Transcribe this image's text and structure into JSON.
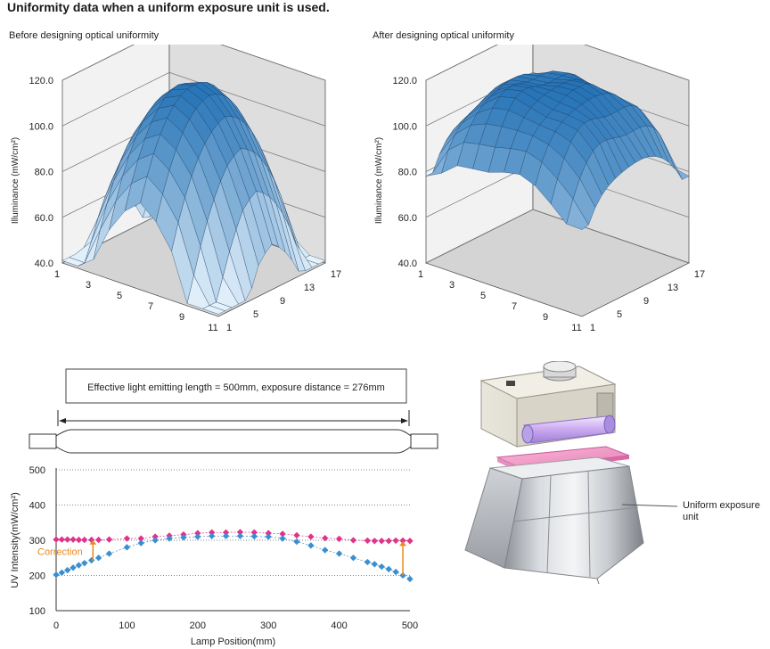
{
  "title": "Uniformity data when a uniform exposure unit is used.",
  "colors": {
    "surface_top": "#1f6fb4",
    "surface_bottom": "#dfeef9",
    "series_top": "#e0338c",
    "series_bottom": "#3a8fd0",
    "correction": "#e8891c",
    "wall": "#e8e8e8",
    "grid": "#bdbdbd"
  },
  "chart_data": [
    {
      "type": "surface3d",
      "subtitle": "Before designing optical uniformity",
      "zlabel": "Illuminance (mW/cm²)",
      "zticks": [
        "120.0",
        "100.0",
        "80.0",
        "60.0",
        "40.0"
      ],
      "zlim": [
        40,
        120
      ],
      "xticks": [
        "1",
        "3",
        "5",
        "7",
        "9",
        "11"
      ],
      "yticks": [
        "1",
        "5",
        "9",
        "13",
        "17"
      ],
      "x_range": [
        1,
        11
      ],
      "y_range": [
        1,
        17
      ],
      "shape": "dome with peak about 118 at center, edges falling to about 45-60, lowest corner about 42"
    },
    {
      "type": "surface3d",
      "subtitle": "After designing optical uniformity",
      "zlabel": "Illuminance (mW/cm²)",
      "zticks": [
        "120.0",
        "100.0",
        "80.0",
        "60.0",
        "40.0"
      ],
      "zlim": [
        40,
        120
      ],
      "xticks": [
        "1",
        "3",
        "5",
        "7",
        "9",
        "11"
      ],
      "yticks": [
        "1",
        "5",
        "9",
        "13",
        "17"
      ],
      "x_range": [
        1,
        11
      ],
      "y_range": [
        1,
        17
      ],
      "shape": "flat plateau about 110-118 with gentle edges falling to about 80"
    },
    {
      "type": "line",
      "annotation": "Effective light emitting length = 500mm, exposure distance = 276mm",
      "xlabel": "Lamp Position(mm)",
      "ylabel": "UV Intensity(mW/cm²)",
      "xticks": [
        "0",
        "100",
        "200",
        "300",
        "400",
        "500"
      ],
      "yticks": [
        "500",
        "400",
        "300",
        "200",
        "100"
      ],
      "xlim": [
        0,
        500
      ],
      "ylim": [
        100,
        500
      ],
      "correction_label": "Correction",
      "series": [
        {
          "color": "#e0338c",
          "x": [
            0,
            8,
            16,
            24,
            32,
            40,
            50,
            60,
            75,
            100,
            120,
            140,
            160,
            180,
            200,
            220,
            240,
            260,
            280,
            300,
            320,
            340,
            360,
            380,
            400,
            420,
            440,
            450,
            460,
            470,
            480,
            490,
            500
          ],
          "y": [
            302,
            302,
            302,
            302,
            301,
            301,
            301,
            301,
            302,
            305,
            305,
            310,
            313,
            316,
            320,
            322,
            322,
            323,
            322,
            320,
            318,
            314,
            310,
            306,
            304,
            300,
            299,
            298,
            298,
            298,
            299,
            299,
            298
          ]
        },
        {
          "color": "#3a8fd0",
          "x": [
            0,
            8,
            16,
            24,
            32,
            40,
            50,
            60,
            75,
            100,
            120,
            140,
            160,
            180,
            200,
            220,
            240,
            260,
            280,
            300,
            320,
            340,
            360,
            380,
            400,
            420,
            440,
            450,
            460,
            470,
            480,
            490,
            500
          ],
          "y": [
            202,
            208,
            215,
            222,
            229,
            235,
            243,
            250,
            262,
            280,
            292,
            300,
            305,
            308,
            310,
            312,
            312,
            312,
            311,
            310,
            305,
            296,
            285,
            272,
            262,
            250,
            238,
            232,
            225,
            218,
            210,
            200,
            190
          ]
        }
      ]
    }
  ],
  "device_label": "Uniform exposure unit"
}
